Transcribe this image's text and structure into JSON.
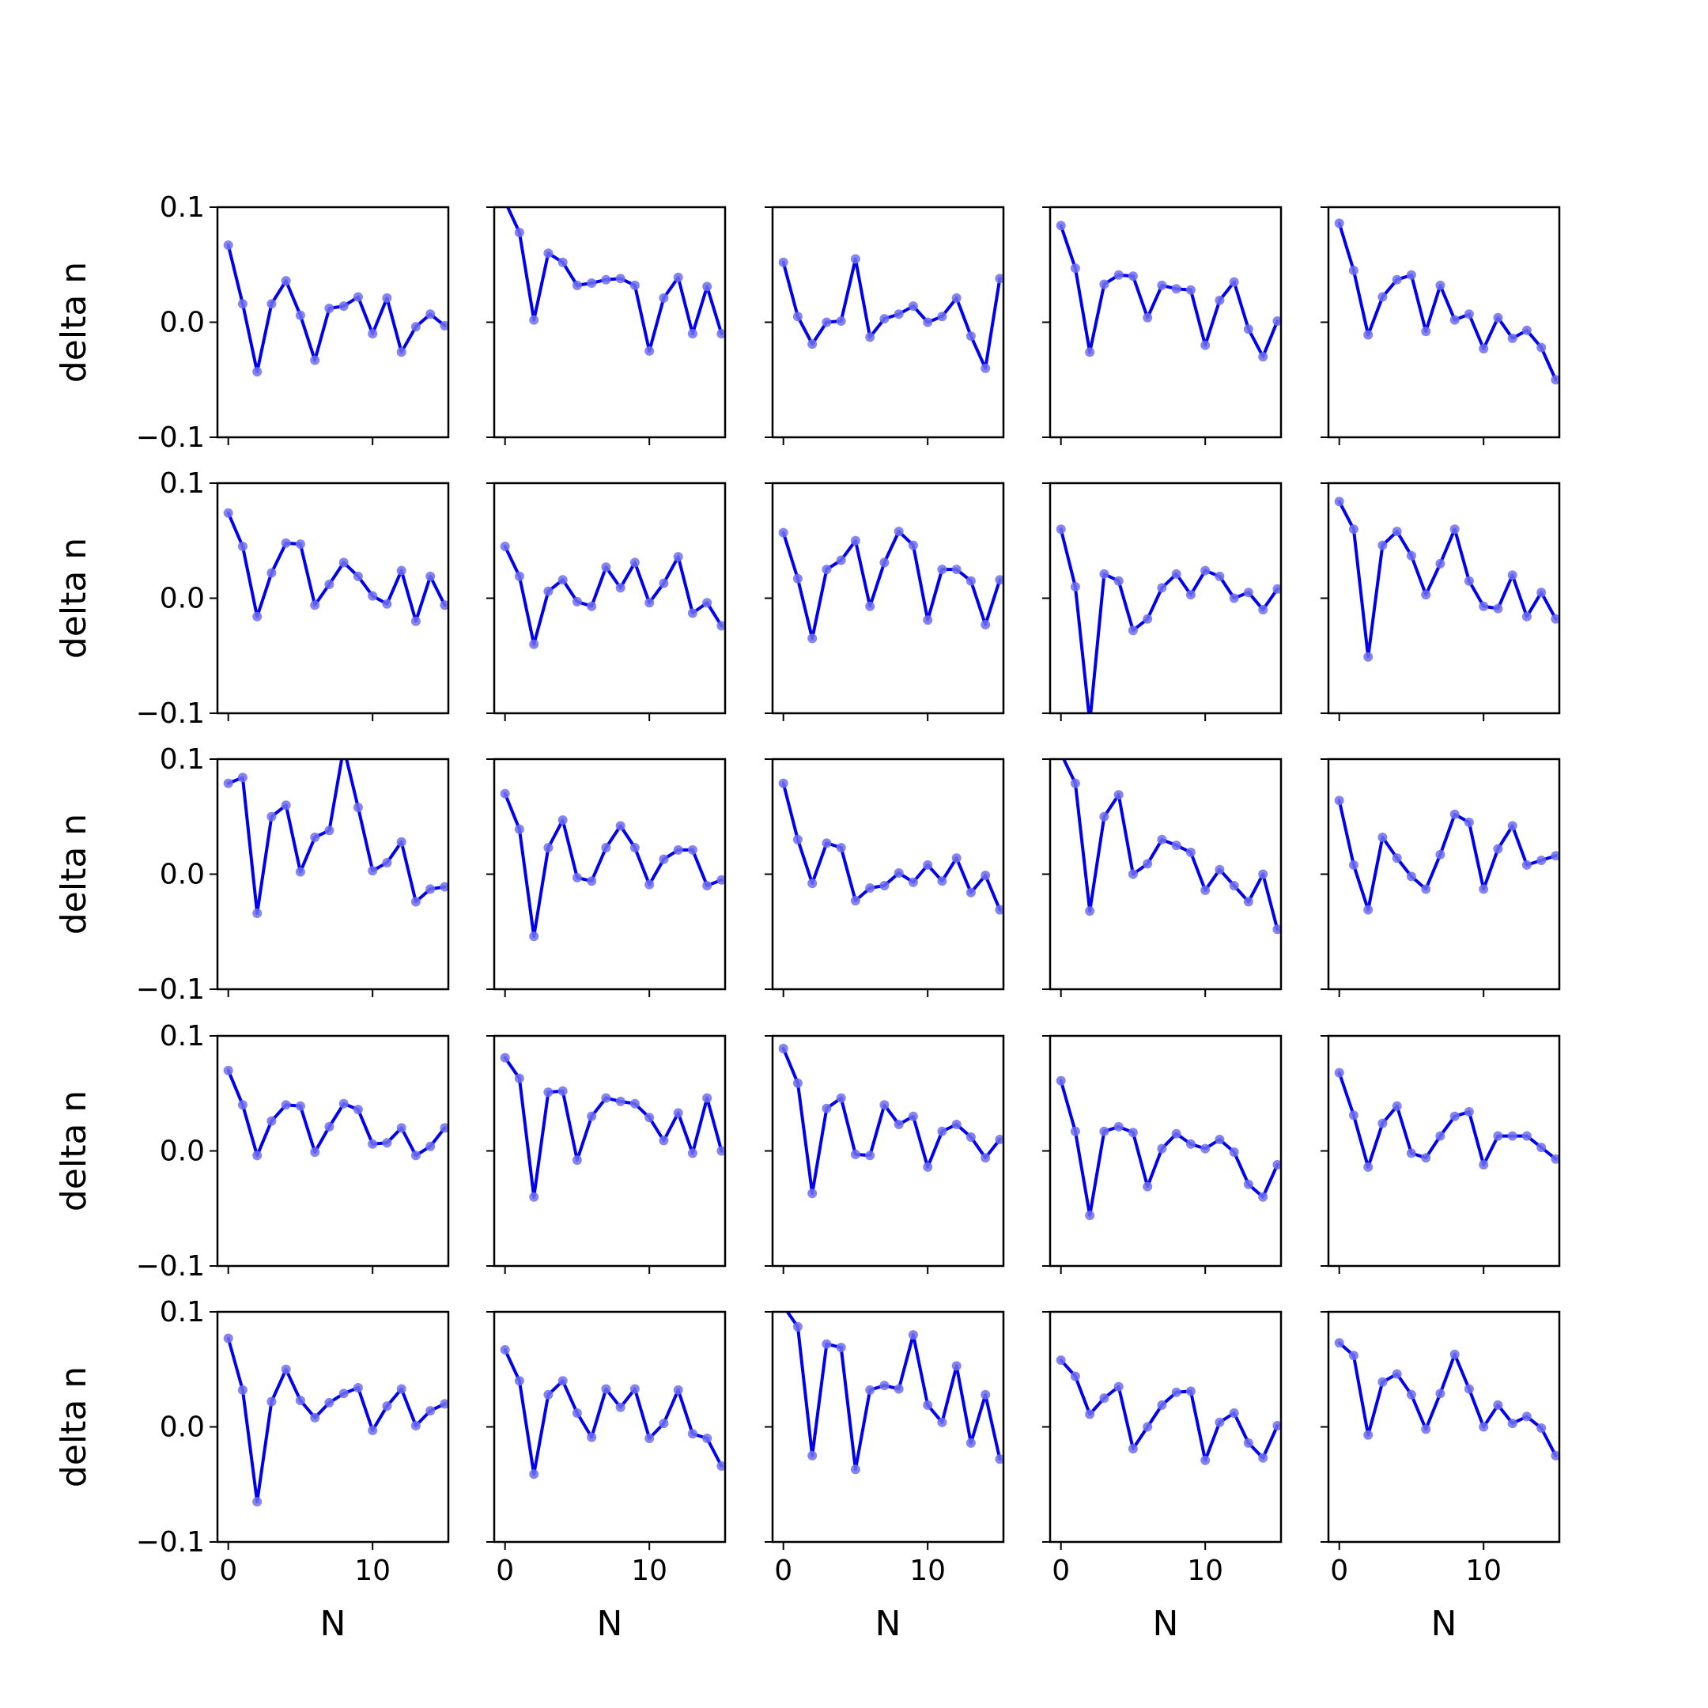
{
  "chart_data": {
    "type": "line",
    "layout": "5x5 grid of small-multiple line charts",
    "xlabel": "N",
    "ylabel": "delta n",
    "xlim": [
      -0.75,
      15.25
    ],
    "ylim": [
      -0.1,
      0.1
    ],
    "xticks": [
      0,
      10
    ],
    "xtick_labels": [
      "0",
      "10"
    ],
    "yticks": [
      -0.1,
      0.0,
      0.1
    ],
    "ytick_labels": [
      "−0.1",
      "0.0",
      "0.1"
    ],
    "line_color": "#0000ee",
    "marker_color": "#6e6ef0",
    "x": [
      0,
      1,
      2,
      3,
      4,
      5,
      6,
      7,
      8,
      9,
      10,
      11,
      12,
      13,
      14,
      15
    ],
    "panels": [
      {
        "values": [
          0.067,
          0.016,
          -0.043,
          0.016,
          0.036,
          0.006,
          -0.033,
          0.012,
          0.014,
          0.022,
          -0.01,
          0.021,
          -0.026,
          -0.004,
          0.007,
          -0.003
        ]
      },
      {
        "values": [
          0.105,
          0.078,
          0.002,
          0.06,
          0.052,
          0.032,
          0.034,
          0.037,
          0.038,
          0.032,
          -0.025,
          0.021,
          0.039,
          -0.01,
          0.031,
          -0.01
        ]
      },
      {
        "values": [
          0.052,
          0.005,
          -0.019,
          0.0,
          0.001,
          0.055,
          -0.013,
          0.003,
          0.007,
          0.014,
          0.0,
          0.005,
          0.021,
          -0.012,
          -0.04,
          0.038
        ]
      },
      {
        "values": [
          0.084,
          0.047,
          -0.026,
          0.033,
          0.041,
          0.04,
          0.004,
          0.032,
          0.029,
          0.028,
          -0.02,
          0.019,
          0.035,
          -0.006,
          -0.03,
          0.001
        ]
      },
      {
        "values": [
          0.086,
          0.045,
          -0.011,
          0.022,
          0.037,
          0.041,
          -0.008,
          0.032,
          0.002,
          0.007,
          -0.023,
          0.004,
          -0.014,
          -0.007,
          -0.022,
          -0.05
        ]
      },
      {
        "values": [
          0.074,
          0.045,
          -0.016,
          0.022,
          0.048,
          0.047,
          -0.006,
          0.012,
          0.031,
          0.019,
          0.002,
          -0.005,
          0.024,
          -0.02,
          0.019,
          -0.006
        ]
      },
      {
        "values": [
          0.045,
          0.019,
          -0.04,
          0.006,
          0.016,
          -0.003,
          -0.007,
          0.027,
          0.009,
          0.031,
          -0.004,
          0.013,
          0.036,
          -0.013,
          -0.004,
          -0.024
        ]
      },
      {
        "values": [
          0.057,
          0.017,
          -0.035,
          0.025,
          0.033,
          0.05,
          -0.007,
          0.031,
          0.058,
          0.046,
          -0.019,
          0.025,
          0.025,
          0.015,
          -0.023,
          0.016
        ]
      },
      {
        "values": [
          0.06,
          0.01,
          -0.108,
          0.021,
          0.015,
          -0.028,
          -0.018,
          0.009,
          0.021,
          0.003,
          0.024,
          0.019,
          0.0,
          0.005,
          -0.01,
          0.008
        ]
      },
      {
        "values": [
          0.084,
          0.06,
          -0.051,
          0.046,
          0.058,
          0.037,
          0.003,
          0.03,
          0.06,
          0.015,
          -0.007,
          -0.009,
          0.02,
          -0.016,
          0.005,
          -0.018
        ]
      },
      {
        "values": [
          0.079,
          0.084,
          -0.034,
          0.05,
          0.06,
          0.002,
          0.032,
          0.038,
          0.11,
          0.058,
          0.003,
          0.01,
          0.028,
          -0.024,
          -0.013,
          -0.011
        ]
      },
      {
        "values": [
          0.07,
          0.039,
          -0.054,
          0.023,
          0.047,
          -0.003,
          -0.006,
          0.023,
          0.042,
          0.023,
          -0.009,
          0.013,
          0.021,
          0.021,
          -0.01,
          -0.005
        ]
      },
      {
        "values": [
          0.079,
          0.03,
          -0.008,
          0.027,
          0.023,
          -0.023,
          -0.012,
          -0.01,
          0.001,
          -0.007,
          0.008,
          -0.006,
          0.014,
          -0.016,
          -0.001,
          -0.031
        ]
      },
      {
        "values": [
          0.105,
          0.079,
          -0.032,
          0.05,
          0.069,
          0.0,
          0.009,
          0.03,
          0.025,
          0.019,
          -0.014,
          0.004,
          -0.01,
          -0.024,
          0.0,
          -0.048
        ]
      },
      {
        "values": [
          0.064,
          0.008,
          -0.031,
          0.032,
          0.014,
          -0.002,
          -0.013,
          0.017,
          0.052,
          0.045,
          -0.013,
          0.022,
          0.042,
          0.008,
          0.012,
          0.016
        ]
      },
      {
        "values": [
          0.07,
          0.04,
          -0.004,
          0.026,
          0.04,
          0.039,
          -0.001,
          0.021,
          0.041,
          0.036,
          0.006,
          0.007,
          0.02,
          -0.004,
          0.004,
          0.02
        ]
      },
      {
        "values": [
          0.081,
          0.063,
          -0.04,
          0.051,
          0.052,
          -0.008,
          0.03,
          0.046,
          0.043,
          0.041,
          0.029,
          0.009,
          0.033,
          -0.002,
          0.046,
          0.0
        ]
      },
      {
        "values": [
          0.089,
          0.059,
          -0.037,
          0.037,
          0.046,
          -0.003,
          -0.004,
          0.04,
          0.023,
          0.03,
          -0.014,
          0.017,
          0.023,
          0.012,
          -0.006,
          0.01
        ]
      },
      {
        "values": [
          0.061,
          0.017,
          -0.056,
          0.017,
          0.021,
          0.016,
          -0.031,
          0.002,
          0.015,
          0.006,
          0.002,
          0.01,
          -0.001,
          -0.029,
          -0.04,
          -0.012
        ]
      },
      {
        "values": [
          0.068,
          0.031,
          -0.014,
          0.024,
          0.039,
          -0.002,
          -0.006,
          0.013,
          0.03,
          0.034,
          -0.012,
          0.013,
          0.013,
          0.013,
          0.003,
          -0.007
        ]
      },
      {
        "values": [
          0.077,
          0.032,
          -0.065,
          0.022,
          0.05,
          0.023,
          0.008,
          0.021,
          0.029,
          0.034,
          -0.003,
          0.018,
          0.033,
          0.001,
          0.014,
          0.02
        ]
      },
      {
        "values": [
          0.067,
          0.04,
          -0.041,
          0.028,
          0.04,
          0.012,
          -0.009,
          0.033,
          0.017,
          0.033,
          -0.01,
          0.003,
          0.032,
          -0.006,
          -0.01,
          -0.034
        ]
      },
      {
        "values": [
          0.105,
          0.087,
          -0.025,
          0.072,
          0.069,
          -0.037,
          0.032,
          0.036,
          0.033,
          0.08,
          0.019,
          0.004,
          0.053,
          -0.014,
          0.028,
          -0.028
        ]
      },
      {
        "values": [
          0.058,
          0.044,
          0.011,
          0.025,
          0.035,
          -0.019,
          0.0,
          0.019,
          0.03,
          0.031,
          -0.029,
          0.004,
          0.012,
          -0.014,
          -0.027,
          0.001
        ]
      },
      {
        "values": [
          0.073,
          0.062,
          -0.007,
          0.039,
          0.046,
          0.028,
          -0.002,
          0.029,
          0.063,
          0.033,
          0.0,
          0.019,
          0.003,
          0.009,
          -0.001,
          -0.025
        ]
      }
    ]
  }
}
